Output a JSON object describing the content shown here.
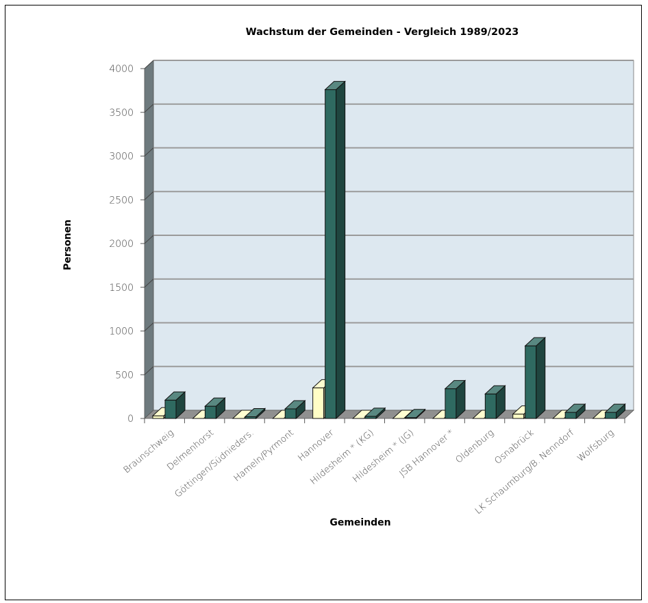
{
  "chart_data": {
    "type": "bar",
    "title": "Wachstum der Gemeinden - Vergleich 1989/2023",
    "xlabel": "Gemeinden",
    "ylabel": "Personen",
    "ylim": [
      0,
      4000
    ],
    "yticks": [
      "0",
      "500",
      "1000",
      "1500",
      "2000",
      "2500",
      "3000",
      "3500",
      "4000"
    ],
    "grid": true,
    "legend": "none",
    "categories": [
      "Braunschweig",
      "Delmenhorst",
      "Göttingen/Südnieders.",
      "Hameln/Pyrmont",
      "Hannover",
      "Hildesheim * (KG)",
      "Hildesheim * (JG)",
      "JSB Hannover *",
      "Oldenburg",
      "Osnabrück",
      "LK Schaumburg/B. Nenndorf",
      "Wolfsburg"
    ],
    "series": [
      {
        "values": [
          30,
          0,
          0,
          0,
          350,
          0,
          0,
          0,
          0,
          50,
          0,
          0
        ],
        "color": "#fffec6"
      },
      {
        "values": [
          210,
          140,
          20,
          110,
          3760,
          25,
          10,
          340,
          280,
          830,
          70,
          70
        ],
        "color": "#2f6a61"
      }
    ],
    "colors": {
      "wall": "#dde8f0",
      "side_wall": "#6e7a7e",
      "floor": "#909090",
      "gridline": "#9a9a9a"
    }
  }
}
